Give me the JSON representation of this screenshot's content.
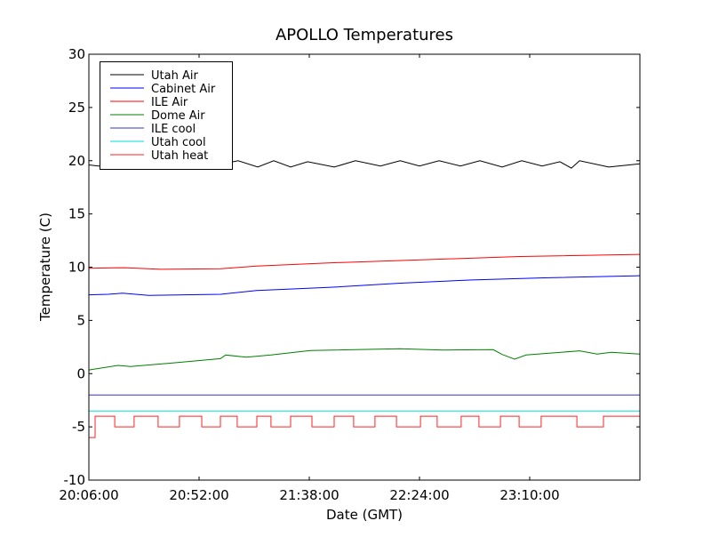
{
  "chart_data": {
    "type": "line",
    "title": "APOLLO Temperatures",
    "xlabel": "Date (GMT)",
    "ylabel": "Temperature (C)",
    "x_unit": "minutes after 20:06:00",
    "xlim": [
      0,
      230
    ],
    "ylim": [
      -10,
      30
    ],
    "x_ticks": [
      {
        "value": 0,
        "label": "20:06:00"
      },
      {
        "value": 46,
        "label": "20:52:00"
      },
      {
        "value": 92,
        "label": "21:38:00"
      },
      {
        "value": 138,
        "label": "22:24:00"
      },
      {
        "value": 184,
        "label": "23:10:00"
      }
    ],
    "y_ticks": [
      {
        "value": -10,
        "label": "-10"
      },
      {
        "value": -5,
        "label": "-5"
      },
      {
        "value": 0,
        "label": "0"
      },
      {
        "value": 5,
        "label": "5"
      },
      {
        "value": 10,
        "label": "10"
      },
      {
        "value": 15,
        "label": "15"
      },
      {
        "value": 20,
        "label": "20"
      },
      {
        "value": 25,
        "label": "25"
      },
      {
        "value": 30,
        "label": "30"
      }
    ],
    "grid": false,
    "legend_position": "top-left",
    "series": [
      {
        "name": "Utah Air",
        "color": "#000000",
        "step": false,
        "points": [
          [
            0,
            19.6
          ],
          [
            4,
            19.5
          ],
          [
            10,
            19.5
          ],
          [
            20,
            19.9
          ],
          [
            30,
            19.4
          ],
          [
            40,
            20.0
          ],
          [
            50,
            19.4
          ],
          [
            58,
            19.8
          ],
          [
            62.3,
            20.0
          ],
          [
            70.5,
            19.4
          ],
          [
            77.2,
            20.0
          ],
          [
            84.2,
            19.4
          ],
          [
            91.3,
            19.9
          ],
          [
            102.4,
            19.4
          ],
          [
            111.3,
            20.0
          ],
          [
            121.7,
            19.5
          ],
          [
            129.9,
            20.0
          ],
          [
            138,
            19.5
          ],
          [
            146.2,
            20.0
          ],
          [
            155.1,
            19.5
          ],
          [
            163.2,
            20.0
          ],
          [
            172.5,
            19.4
          ],
          [
            180.7,
            20.0
          ],
          [
            189.2,
            19.5
          ],
          [
            196.6,
            19.9
          ],
          [
            201.4,
            19.3
          ],
          [
            204.8,
            20.0
          ],
          [
            217,
            19.4
          ],
          [
            230,
            19.7
          ]
        ]
      },
      {
        "name": "Cabinet Air",
        "color": "#0000ff",
        "step": false,
        "points": [
          [
            0,
            7.4
          ],
          [
            8,
            7.45
          ],
          [
            14,
            7.55
          ],
          [
            25,
            7.35
          ],
          [
            40,
            7.4
          ],
          [
            55,
            7.45
          ],
          [
            70,
            7.8
          ],
          [
            100,
            8.1
          ],
          [
            130,
            8.5
          ],
          [
            160,
            8.8
          ],
          [
            190,
            9.0
          ],
          [
            230,
            9.2
          ]
        ]
      },
      {
        "name": "ILE Air",
        "color": "#ff0000",
        "step": false,
        "points": [
          [
            0,
            9.9
          ],
          [
            15,
            9.95
          ],
          [
            30,
            9.8
          ],
          [
            55,
            9.85
          ],
          [
            70,
            10.1
          ],
          [
            100,
            10.4
          ],
          [
            140,
            10.7
          ],
          [
            180,
            11.0
          ],
          [
            230,
            11.2
          ]
        ]
      },
      {
        "name": "Dome Air",
        "color": "#008000",
        "step": false,
        "points": [
          [
            0,
            0.35
          ],
          [
            12.2,
            0.77
          ],
          [
            17.4,
            0.66
          ],
          [
            35,
            1.0
          ],
          [
            54.9,
            1.41
          ],
          [
            57.1,
            1.75
          ],
          [
            65.7,
            1.55
          ],
          [
            76,
            1.75
          ],
          [
            92.4,
            2.17
          ],
          [
            129.9,
            2.33
          ],
          [
            148,
            2.22
          ],
          [
            168.8,
            2.25
          ],
          [
            172.5,
            1.8
          ],
          [
            177.7,
            1.36
          ],
          [
            182.5,
            1.75
          ],
          [
            204.8,
            2.14
          ],
          [
            212.2,
            1.84
          ],
          [
            218.1,
            2.0
          ],
          [
            230,
            1.84
          ]
        ]
      },
      {
        "name": "ILE cool",
        "color": "#3333cc",
        "step": false,
        "points": [
          [
            0,
            -2.0
          ],
          [
            230,
            -2.0
          ]
        ]
      },
      {
        "name": "Utah cool",
        "color": "#00dddd",
        "step": false,
        "points": [
          [
            0,
            -3.5
          ],
          [
            230,
            -3.5
          ]
        ]
      },
      {
        "name": "Utah heat",
        "color": "#ff2222",
        "step": true,
        "points": [
          [
            0,
            -6
          ],
          [
            2.6,
            -4
          ],
          [
            10.8,
            -5
          ],
          [
            18.9,
            -4
          ],
          [
            28.9,
            -5
          ],
          [
            37.8,
            -4
          ],
          [
            47.1,
            -5
          ],
          [
            54.9,
            -4
          ],
          [
            61.9,
            -5
          ],
          [
            70.1,
            -4
          ],
          [
            76,
            -5
          ],
          [
            84.2,
            -4
          ],
          [
            93.1,
            -5
          ],
          [
            102.4,
            -4
          ],
          [
            110.5,
            -5
          ],
          [
            119.4,
            -4
          ],
          [
            128.4,
            -5
          ],
          [
            138.4,
            -4
          ],
          [
            145.4,
            -5
          ],
          [
            155.4,
            -4
          ],
          [
            162.8,
            -5
          ],
          [
            171.8,
            -4
          ],
          [
            179.6,
            -5
          ],
          [
            188.8,
            -4
          ],
          [
            203.7,
            -5
          ],
          [
            214.8,
            -4
          ],
          [
            230,
            -4
          ]
        ]
      }
    ]
  }
}
